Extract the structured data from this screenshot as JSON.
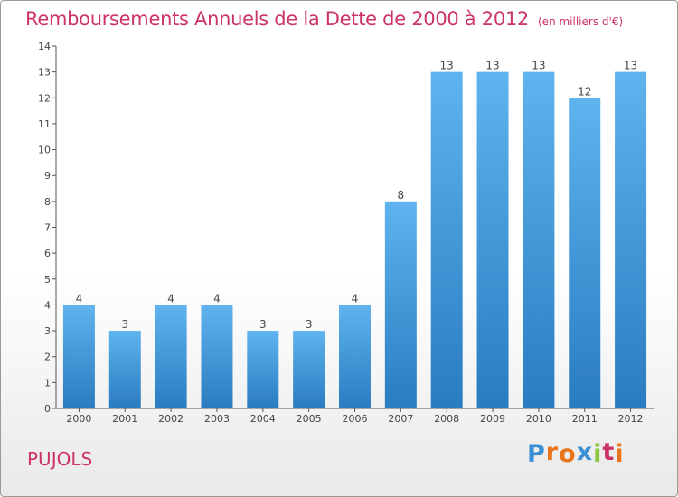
{
  "header": {
    "title": "Remboursements Annuels de la Dette de 2000 à 2012",
    "unit": "(en milliers d'€)"
  },
  "footer": {
    "commune": "PUJOLS",
    "logo_letters": [
      "P",
      "r",
      "o",
      "x",
      "i",
      "t",
      "i"
    ],
    "logo_colors": [
      "#3b8fd6",
      "#e8741c",
      "#e8741c",
      "#3b8fd6",
      "#8cc63f",
      "#cc3366",
      "#e8741c"
    ]
  },
  "colors": {
    "bar": "#4a9fe0",
    "bar_light": "#5fb3ee",
    "bar_dark": "#2a7cc0",
    "title": "#cc3366"
  },
  "chart_data": {
    "type": "bar",
    "title": "Remboursements Annuels de la Dette de 2000 à 2012",
    "subtitle": "(en milliers d'€)",
    "categories": [
      "2000",
      "2001",
      "2002",
      "2003",
      "2004",
      "2005",
      "2006",
      "2007",
      "2008",
      "2009",
      "2010",
      "2011",
      "2012"
    ],
    "values": [
      4,
      3,
      4,
      4,
      3,
      3,
      4,
      8,
      13,
      13,
      13,
      12,
      13
    ],
    "data_labels": [
      "4",
      "3",
      "4",
      "4",
      "3",
      "3",
      "4",
      "8",
      "13",
      "13",
      "13",
      "12",
      "13"
    ],
    "yticks": [
      "0",
      "1",
      "2",
      "3",
      "4",
      "5",
      "6",
      "7",
      "8",
      "9",
      "10",
      "11",
      "12",
      "13",
      "14"
    ],
    "ylim": [
      0,
      14
    ],
    "grid": false,
    "legend": "none"
  }
}
